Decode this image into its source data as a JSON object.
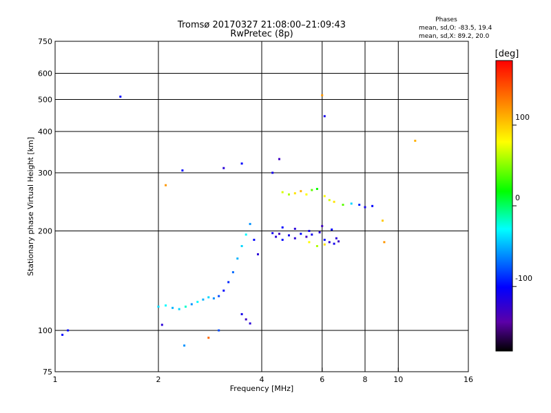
{
  "chart_data": {
    "type": "scatter",
    "title": "Tromsø 20170327 21:08:00–21:09:43",
    "subtitle": "RwPretec (8p)",
    "xlabel": "Frequency [MHz]",
    "ylabel": "Stationary phase Virtual Height [km]",
    "x_scale": "log",
    "y_scale": "log",
    "xlim": [
      1,
      16
    ],
    "ylim": [
      75,
      750
    ],
    "x_ticks": [
      1,
      2,
      4,
      6,
      8,
      10,
      16
    ],
    "y_ticks": [
      75,
      100,
      200,
      300,
      400,
      500,
      600,
      750
    ],
    "grid": true,
    "stats": {
      "heading": "Phases",
      "line_o": "mean, sd,O:  -83.5, 19.4",
      "line_x": "mean, sd,X:   89.2, 20.0"
    },
    "colorbar": {
      "label": "[deg]",
      "range": [
        -180,
        180
      ],
      "ticks": [
        100,
        0,
        -100
      ]
    },
    "series": [
      {
        "name": "ofs",
        "points": [
          [
            1.05,
            97,
            -100
          ],
          [
            1.09,
            100,
            -100
          ],
          [
            1.55,
            510,
            -100
          ],
          [
            2.35,
            305,
            -100
          ],
          [
            2.38,
            90,
            -60
          ],
          [
            2.05,
            104,
            -120
          ]
        ]
      },
      {
        "name": "layer-f-o",
        "points": [
          [
            3.1,
            310,
            -120
          ],
          [
            3.5,
            320,
            -100
          ],
          [
            4.3,
            300,
            -110
          ],
          [
            4.5,
            330,
            -130
          ],
          [
            4.3,
            197,
            -110
          ],
          [
            4.4,
            192,
            -120
          ],
          [
            4.5,
            196,
            -130
          ],
          [
            4.6,
            188,
            -100
          ],
          [
            4.8,
            194,
            -110
          ],
          [
            5.0,
            190,
            -120
          ],
          [
            5.2,
            196,
            -100
          ],
          [
            5.4,
            192,
            -130
          ],
          [
            5.6,
            195,
            -110
          ],
          [
            5.9,
            198,
            -120
          ],
          [
            6.1,
            188,
            -100
          ],
          [
            6.3,
            185,
            -120
          ],
          [
            6.5,
            183,
            -110
          ],
          [
            6.7,
            186,
            -130
          ],
          [
            4.6,
            205,
            -100
          ],
          [
            5.0,
            203,
            -120
          ],
          [
            5.5,
            200,
            -110
          ],
          [
            6.0,
            207,
            -130
          ],
          [
            6.4,
            202,
            -100
          ],
          [
            6.6,
            190,
            -120
          ]
        ]
      },
      {
        "name": "layer-f-x",
        "points": [
          [
            4.6,
            262,
            70
          ],
          [
            4.8,
            258,
            60
          ],
          [
            5.0,
            260,
            90
          ],
          [
            5.2,
            264,
            110
          ],
          [
            5.4,
            258,
            80
          ],
          [
            5.6,
            266,
            40
          ],
          [
            5.8,
            268,
            20
          ],
          [
            6.1,
            255,
            80
          ],
          [
            6.3,
            248,
            70
          ],
          [
            6.5,
            245,
            90
          ],
          [
            6.9,
            240,
            40
          ],
          [
            7.3,
            242,
            -40
          ],
          [
            7.7,
            240,
            -90
          ],
          [
            8.0,
            236,
            -110
          ],
          [
            8.4,
            238,
            -100
          ],
          [
            5.5,
            185,
            80
          ],
          [
            5.8,
            180,
            60
          ],
          [
            6.1,
            182,
            90
          ],
          [
            9.0,
            215,
            100
          ],
          [
            9.1,
            185,
            120
          ],
          [
            11.2,
            375,
            110
          ],
          [
            6.0,
            515,
            120
          ],
          [
            6.1,
            445,
            -110
          ]
        ]
      },
      {
        "name": "layer-e",
        "points": [
          [
            2.0,
            118,
            -40
          ],
          [
            2.1,
            119,
            -30
          ],
          [
            2.2,
            117,
            -50
          ],
          [
            2.3,
            116,
            -40
          ],
          [
            2.4,
            118,
            -20
          ],
          [
            2.5,
            120,
            -60
          ],
          [
            2.6,
            122,
            -30
          ],
          [
            2.7,
            124,
            -50
          ],
          [
            2.8,
            126,
            -40
          ],
          [
            2.9,
            125,
            -60
          ],
          [
            3.0,
            127,
            -80
          ],
          [
            3.1,
            132,
            -100
          ],
          [
            3.2,
            140,
            -90
          ],
          [
            3.3,
            150,
            -70
          ],
          [
            3.4,
            165,
            -50
          ],
          [
            3.5,
            180,
            -40
          ],
          [
            3.6,
            195,
            -30
          ],
          [
            3.7,
            210,
            -60
          ],
          [
            3.8,
            188,
            -100
          ],
          [
            3.9,
            170,
            -120
          ],
          [
            3.5,
            112,
            -110
          ],
          [
            3.6,
            108,
            -130
          ],
          [
            3.7,
            105,
            -120
          ],
          [
            2.8,
            95,
            140
          ],
          [
            3.0,
            100,
            -80
          ],
          [
            2.1,
            275,
            120
          ]
        ]
      }
    ]
  }
}
